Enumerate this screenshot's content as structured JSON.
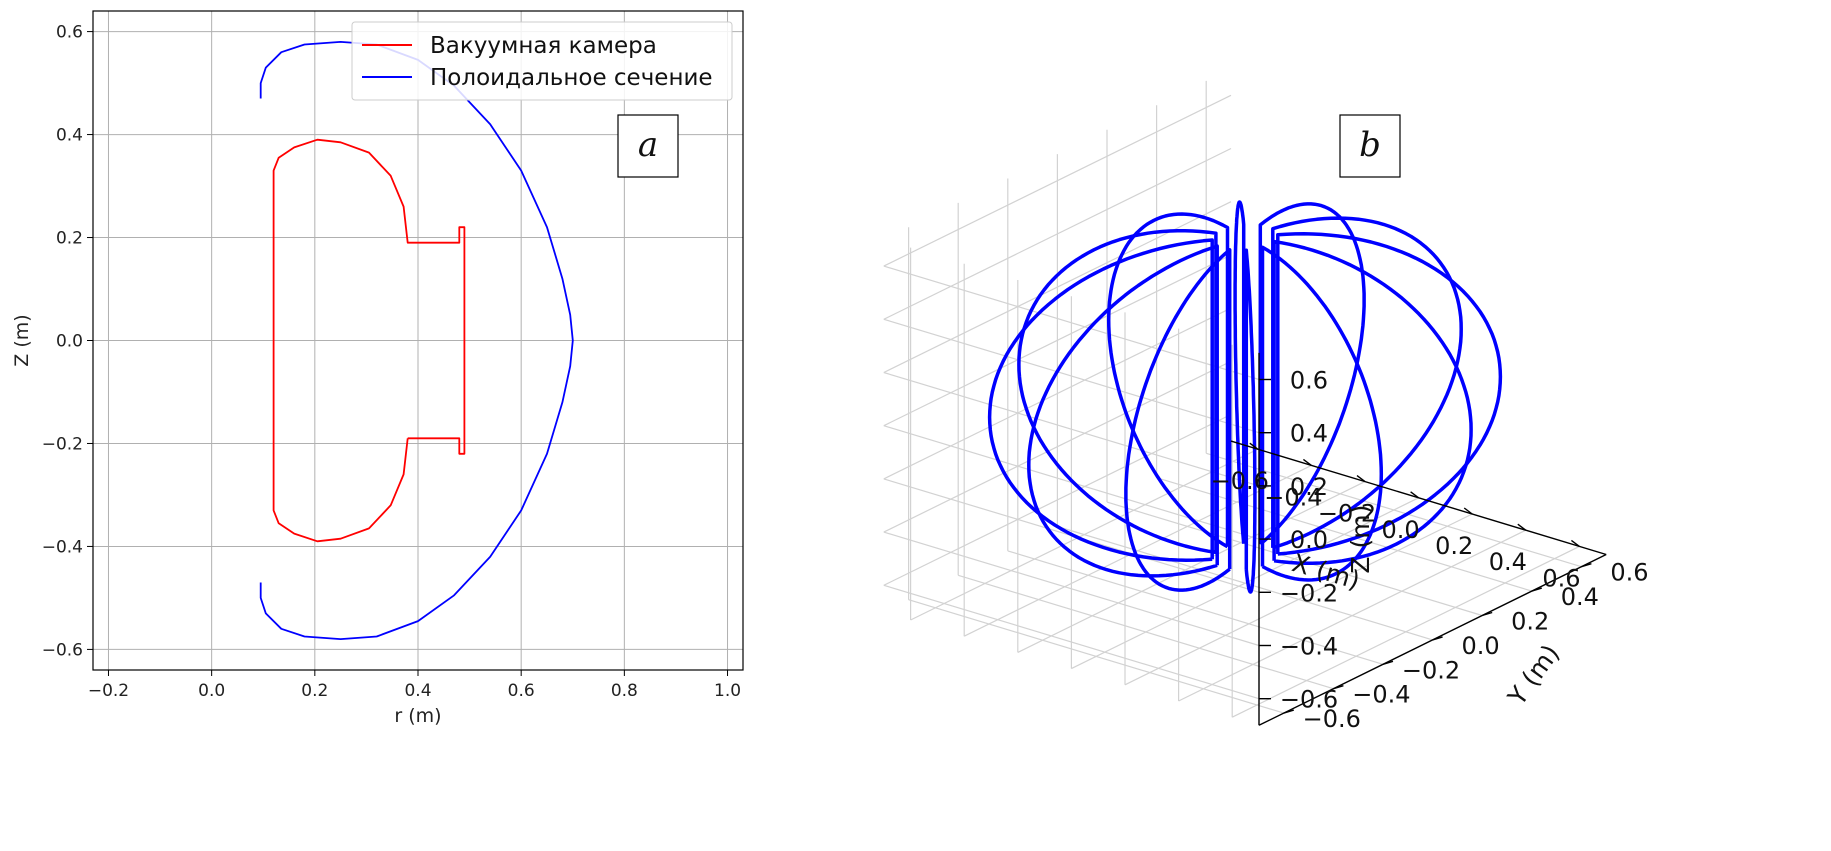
{
  "chart_data": [
    {
      "type": "line",
      "tag": "a",
      "xlabel": "r (m)",
      "ylabel": "Z (m)",
      "xlim": [
        -0.23,
        1.03
      ],
      "ylim": [
        -0.64,
        0.64
      ],
      "xticks": [
        "−0.2",
        "0.0",
        "0.2",
        "0.4",
        "0.6",
        "0.8",
        "1.0"
      ],
      "xtick_values": [
        -0.2,
        0.0,
        0.2,
        0.4,
        0.6,
        0.8,
        1.0
      ],
      "yticks": [
        "0.6",
        "0.4",
        "0.2",
        "0.0",
        "−0.2",
        "−0.4",
        "−0.6"
      ],
      "ytick_values": [
        0.6,
        0.4,
        0.2,
        0.0,
        -0.2,
        -0.4,
        -0.6
      ],
      "grid": true,
      "legend": {
        "placement": "top-right",
        "entries": [
          {
            "label": "Вакуумная камера",
            "color": "#ff0000"
          },
          {
            "label": "Полоидальное сечение",
            "color": "#0000ff"
          }
        ]
      },
      "series": [
        {
          "name": "Вакуумная камера",
          "color": "#ff0000",
          "x": [
            0.38,
            0.372,
            0.347,
            0.305,
            0.25,
            0.205,
            0.16,
            0.13,
            0.12,
            0.12,
            0.13,
            0.16,
            0.205,
            0.25,
            0.305,
            0.347,
            0.372,
            0.38,
            0.38,
            0.48,
            0.48,
            0.49,
            0.49,
            0.48,
            0.48,
            0.38
          ],
          "y": [
            -0.19,
            -0.26,
            -0.32,
            -0.365,
            -0.385,
            -0.39,
            -0.375,
            -0.355,
            -0.33,
            0.33,
            0.355,
            0.375,
            0.39,
            0.385,
            0.365,
            0.32,
            0.26,
            0.19,
            0.19,
            0.19,
            0.22,
            0.22,
            -0.22,
            -0.22,
            -0.19,
            -0.19
          ]
        },
        {
          "name": "Полоидальное сечение",
          "color": "#0000ff",
          "x": [
            0.095,
            0.095,
            0.105,
            0.135,
            0.18,
            0.25,
            0.32,
            0.4,
            0.47,
            0.54,
            0.6,
            0.65,
            0.68,
            0.695,
            0.7,
            0.695,
            0.68,
            0.65,
            0.6,
            0.54,
            0.47,
            0.4,
            0.32,
            0.25,
            0.18,
            0.135,
            0.105,
            0.095,
            0.095
          ],
          "y": [
            0.47,
            0.5,
            0.53,
            0.56,
            0.575,
            0.58,
            0.575,
            0.545,
            0.495,
            0.42,
            0.33,
            0.22,
            0.12,
            0.05,
            0.0,
            -0.05,
            -0.12,
            -0.22,
            -0.33,
            -0.42,
            -0.495,
            -0.545,
            -0.575,
            -0.58,
            -0.575,
            -0.56,
            -0.53,
            -0.5,
            -0.47
          ]
        }
      ]
    },
    {
      "type": "line",
      "tag": "b",
      "projection": "3d",
      "xlabel": "X (m)",
      "ylabel": "Y (m)",
      "zlabel": "Z (m)",
      "xticks": [
        "−0.6",
        "−0.4",
        "−0.2",
        "0.0",
        "0.2",
        "0.4",
        "0.6"
      ],
      "yticks": [
        "0.6",
        "0.4",
        "0.2",
        "0.0",
        "−0.2",
        "−0.4",
        "−0.6"
      ],
      "zticks": [
        "0.6",
        "0.4",
        "0.2",
        "0.0",
        "−0.2",
        "−0.4",
        "−0.6"
      ],
      "tick_values": [
        -0.6,
        -0.4,
        -0.2,
        0.0,
        0.2,
        0.4,
        0.6
      ],
      "grid": true,
      "coil_count": 12,
      "coil_color": "#0000ff"
    }
  ]
}
